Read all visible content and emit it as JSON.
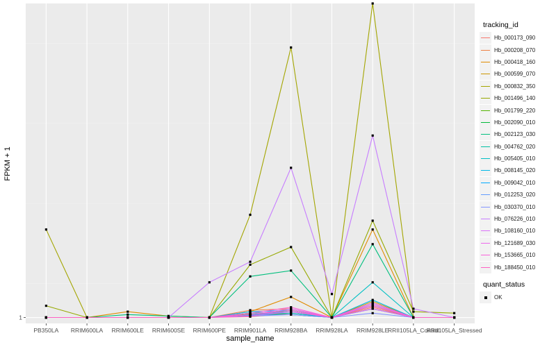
{
  "chart_data": {
    "type": "line",
    "xlabel": "sample_name",
    "ylabel": "FPKM + 1",
    "y_tick_labels": [
      "1"
    ],
    "y_range": [
      0.8,
      11.7
    ],
    "categories": [
      "PB350LA",
      "RRIM600LA",
      "RRIM600LE",
      "RRIM600SE",
      "RRIM600PE",
      "RRIM901LA",
      "RRIM928BA",
      "RRIM928LA",
      "RRIM928LE",
      "RRII105LA_Control",
      "RRII105LA_Stressed"
    ],
    "series": [
      {
        "name": "Hb_000173_090",
        "color": "#F8766D",
        "values": [
          1.0,
          1.0,
          1.0,
          1.0,
          1.0,
          1.03,
          1.15,
          1.0,
          1.35,
          1.0,
          1.0
        ]
      },
      {
        "name": "Hb_000208_070",
        "color": "#EE8043",
        "values": [
          1.0,
          1.0,
          1.0,
          1.0,
          1.0,
          1.25,
          1.3,
          1.0,
          1.45,
          1.0,
          1.0
        ]
      },
      {
        "name": "Hb_000418_160",
        "color": "#E08B00",
        "values": [
          1.0,
          1.0,
          1.2,
          1.05,
          1.0,
          1.2,
          1.7,
          1.0,
          4.0,
          1.0,
          1.0
        ]
      },
      {
        "name": "Hb_000599_070",
        "color": "#CC9600",
        "values": [
          1.0,
          1.0,
          1.0,
          1.0,
          1.0,
          1.1,
          1.2,
          1.0,
          1.55,
          1.0,
          1.0
        ]
      },
      {
        "name": "Hb_000832_350",
        "color": "#A3A500",
        "values": [
          4.0,
          1.0,
          1.0,
          1.0,
          1.0,
          4.5,
          10.2,
          1.0,
          11.7,
          1.0,
          1.0
        ]
      },
      {
        "name": "Hb_001496_140",
        "color": "#96A900",
        "values": [
          1.4,
          1.0,
          1.0,
          1.0,
          1.0,
          2.8,
          3.4,
          1.0,
          4.3,
          1.2,
          1.15
        ]
      },
      {
        "name": "Hb_001799_220",
        "color": "#53B400",
        "values": [
          1.0,
          1.0,
          1.0,
          1.0,
          1.0,
          1.12,
          1.1,
          1.0,
          1.4,
          1.0,
          1.0
        ]
      },
      {
        "name": "Hb_002090_010",
        "color": "#00BA38",
        "values": [
          1.0,
          1.0,
          1.0,
          1.0,
          1.0,
          1.1,
          1.25,
          1.0,
          1.3,
          1.0,
          1.0
        ]
      },
      {
        "name": "Hb_002123_030",
        "color": "#00BF7D",
        "values": [
          1.0,
          1.0,
          1.1,
          1.05,
          1.0,
          2.4,
          2.6,
          1.0,
          3.5,
          1.0,
          1.0
        ]
      },
      {
        "name": "Hb_004762_020",
        "color": "#00C0A3",
        "values": [
          1.0,
          1.0,
          1.0,
          1.0,
          1.0,
          1.15,
          1.2,
          1.0,
          1.5,
          1.0,
          1.0
        ]
      },
      {
        "name": "Hb_005405_010",
        "color": "#00BFC4",
        "values": [
          1.0,
          1.0,
          1.0,
          1.0,
          1.0,
          1.1,
          1.15,
          1.0,
          2.2,
          1.0,
          1.0
        ]
      },
      {
        "name": "Hb_008145_020",
        "color": "#00B8E7",
        "values": [
          1.0,
          1.0,
          1.0,
          1.0,
          1.0,
          1.2,
          1.25,
          1.0,
          1.6,
          1.0,
          1.0
        ]
      },
      {
        "name": "Hb_009042_010",
        "color": "#00A9FF",
        "values": [
          1.0,
          1.0,
          1.0,
          1.0,
          1.0,
          1.08,
          1.1,
          1.0,
          1.3,
          1.0,
          1.0
        ]
      },
      {
        "name": "Hb_012253_020",
        "color": "#619CFF",
        "values": [
          1.0,
          1.0,
          1.0,
          1.0,
          1.0,
          1.1,
          1.2,
          1.0,
          1.4,
          1.0,
          1.0
        ]
      },
      {
        "name": "Hb_030370_010",
        "color": "#8494FF",
        "values": [
          1.0,
          1.0,
          1.0,
          1.0,
          1.0,
          1.05,
          1.1,
          1.0,
          1.15,
          1.0,
          1.0
        ]
      },
      {
        "name": "Hb_076226_010",
        "color": "#C77CFF",
        "values": [
          1.0,
          1.0,
          1.0,
          1.0,
          2.2,
          2.9,
          6.1,
          1.8,
          7.2,
          1.3,
          1.0
        ]
      },
      {
        "name": "Hb_108160_010",
        "color": "#DB72FB",
        "values": [
          1.0,
          1.0,
          1.0,
          1.0,
          1.0,
          1.1,
          1.3,
          1.0,
          1.45,
          1.0,
          1.0
        ]
      },
      {
        "name": "Hb_121689_030",
        "color": "#ED68ED",
        "values": [
          1.0,
          1.0,
          1.0,
          1.0,
          1.0,
          1.05,
          1.2,
          1.0,
          1.3,
          1.0,
          1.0
        ]
      },
      {
        "name": "Hb_153665_010",
        "color": "#FA62DB",
        "values": [
          1.0,
          1.0,
          1.0,
          1.0,
          1.0,
          1.15,
          1.35,
          1.0,
          1.5,
          1.0,
          1.0
        ]
      },
      {
        "name": "Hb_188450_010",
        "color": "#FF61C3",
        "values": [
          1.0,
          1.0,
          1.0,
          1.0,
          1.0,
          1.1,
          1.25,
          1.0,
          1.4,
          1.0,
          1.0
        ]
      }
    ],
    "legend": {
      "tracking_title": "tracking_id",
      "status_title": "quant_status",
      "status_entries": [
        "OK"
      ]
    }
  }
}
